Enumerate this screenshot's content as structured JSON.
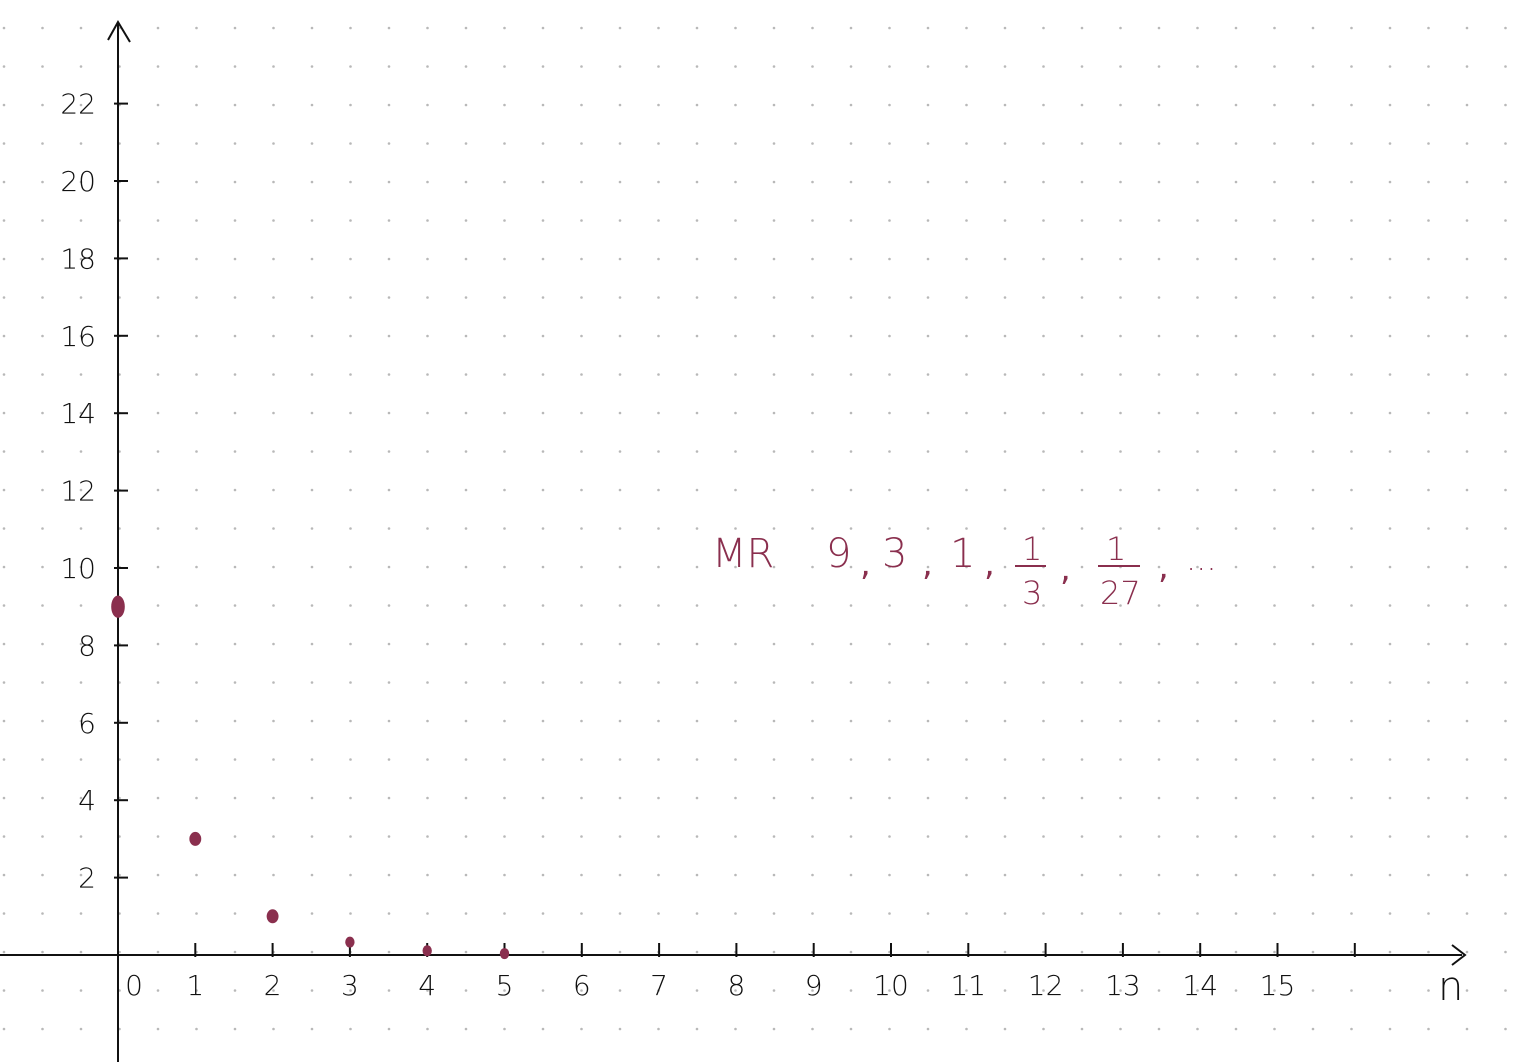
{
  "chart_data": {
    "type": "scatter",
    "title": "",
    "xlabel": "n",
    "ylabel": "",
    "x": [
      0,
      1,
      2,
      3,
      4,
      5
    ],
    "y": [
      9,
      3,
      1,
      0.333,
      0.111,
      0.037
    ],
    "xlim": [
      0,
      15
    ],
    "ylim": [
      0,
      22
    ],
    "x_ticks": [
      "0",
      "1",
      "2",
      "3",
      "4",
      "5",
      "6",
      "7",
      "8",
      "9",
      "10",
      "11",
      "12",
      "13",
      "14",
      "15"
    ],
    "y_ticks": [
      "2",
      "4",
      "6",
      "8",
      "10",
      "12",
      "14",
      "16",
      "18",
      "20",
      "22"
    ],
    "grid": "dotted",
    "point_color": "#8a2f4e",
    "axis_color": "#111111"
  },
  "annotation": {
    "prefix": "MR",
    "terms": [
      "9",
      "3",
      "1"
    ],
    "frac1_num": "1",
    "frac1_den": "3",
    "frac2_num": "1",
    "frac2_den": "27",
    "ellipsis": "...",
    "color": "#8a2f4e"
  }
}
